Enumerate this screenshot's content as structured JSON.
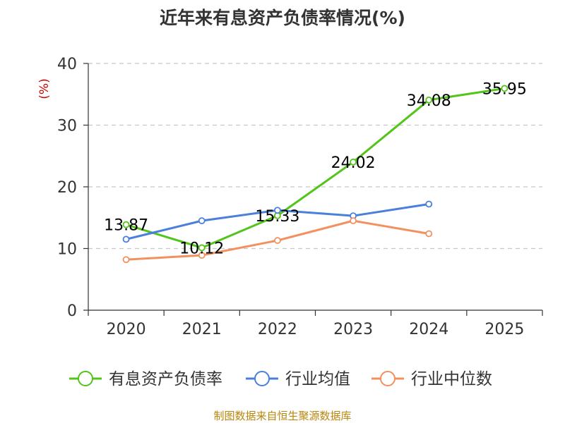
{
  "chart_data": {
    "type": "line",
    "title": "近年来有息资产负债率情况(%)",
    "ylabel": "(%)",
    "xlabel": "",
    "categories": [
      "2020",
      "2021",
      "2022",
      "2023",
      "2024",
      "2025"
    ],
    "ylim": [
      0,
      40
    ],
    "yticks": [
      0,
      10,
      20,
      30,
      40
    ],
    "grid": true,
    "legend_position": "bottom",
    "series": [
      {
        "name": "有息资产负债率",
        "color": "#52c41a",
        "values": [
          13.87,
          10.12,
          15.33,
          24.02,
          34.08,
          35.95
        ],
        "labels": [
          "13.87",
          "10.12",
          "15.33",
          "24.02",
          "34.08",
          "35.95"
        ]
      },
      {
        "name": "行业均值",
        "color": "#4a7fdc",
        "values": [
          11.5,
          14.5,
          16.2,
          15.3,
          17.2,
          null
        ]
      },
      {
        "name": "行业中位数",
        "color": "#f39060",
        "values": [
          8.2,
          8.9,
          11.3,
          14.5,
          12.4,
          null
        ]
      }
    ],
    "source": "制图数据来自恒生聚源数据库"
  }
}
